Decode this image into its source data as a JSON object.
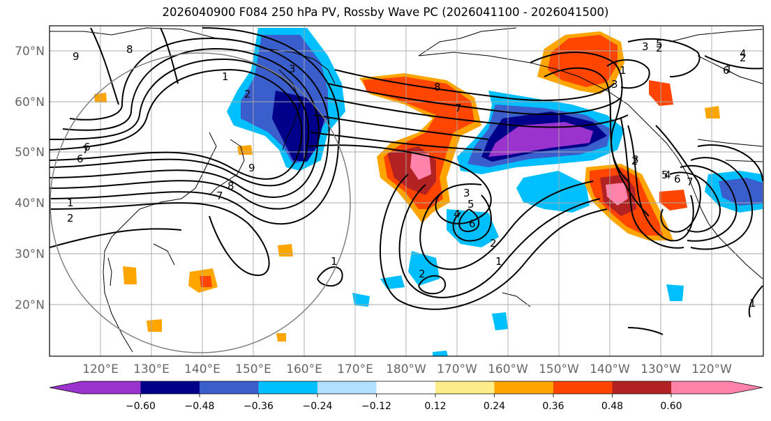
{
  "title": "2026040900 F084 250 hPa PV, Rossby Wave PC (2026041100 - 2026041500)",
  "map": {
    "projection": "equirectangular",
    "lon_range": [
      110,
      -115
    ],
    "lat_range": [
      10,
      75
    ],
    "lat_ticks": [
      {
        "value": 70,
        "label": "70°N"
      },
      {
        "value": 60,
        "label": "60°N"
      },
      {
        "value": 50,
        "label": "50°N"
      },
      {
        "value": 40,
        "label": "40°N"
      },
      {
        "value": 30,
        "label": "30°N"
      },
      {
        "value": 20,
        "label": "20°N"
      }
    ],
    "lon_ticks": [
      {
        "value": 120,
        "label": "120°E"
      },
      {
        "value": 130,
        "label": "130°E"
      },
      {
        "value": 140,
        "label": "140°E"
      },
      {
        "value": 150,
        "label": "150°E"
      },
      {
        "value": 160,
        "label": "160°E"
      },
      {
        "value": 170,
        "label": "170°E"
      },
      {
        "value": 180,
        "label": "180°W"
      },
      {
        "value": 190,
        "label": "170°W"
      },
      {
        "value": 200,
        "label": "160°W"
      },
      {
        "value": 210,
        "label": "150°W"
      },
      {
        "value": 220,
        "label": "140°W"
      },
      {
        "value": 230,
        "label": "130°W"
      },
      {
        "value": 240,
        "label": "120°W"
      }
    ],
    "grid": true,
    "contour_labels": [
      "9",
      "8",
      "1",
      "2",
      "3",
      "1",
      "2",
      "8",
      "7",
      "6",
      "7",
      "2",
      "1",
      "9",
      "8",
      "7",
      "5",
      "6",
      "4",
      "3",
      "2",
      "1",
      "2",
      "3",
      "4",
      "5",
      "6",
      "7",
      "6",
      "3",
      "2",
      "1",
      "3",
      "1",
      "2",
      "1",
      "6",
      "5",
      "4"
    ],
    "fill_colors": {
      "strong_negative": "#9a32cd",
      "negative_3": "#00008b",
      "negative_2": "#3a5fcd",
      "negative_1": "#00bfff",
      "weak_negative": "#b0e2ff",
      "weak_positive": "#ffec8b",
      "positive_1": "#ffa500",
      "positive_2": "#ff4500",
      "positive_3": "#b22222",
      "strong_positive": "#ff82ab"
    }
  },
  "colorbar": {
    "ticks": [
      "−0.60",
      "−0.48",
      "−0.36",
      "−0.24",
      "−0.12",
      "0.12",
      "0.24",
      "0.36",
      "0.48",
      "0.60"
    ],
    "segment_colors": [
      "#9a32cd",
      "#00008b",
      "#3a5fcd",
      "#00bfff",
      "#b0e2ff",
      "#ffffff",
      "#ffec8b",
      "#ffa500",
      "#ff4500",
      "#b22222",
      "#ff82ab"
    ]
  }
}
